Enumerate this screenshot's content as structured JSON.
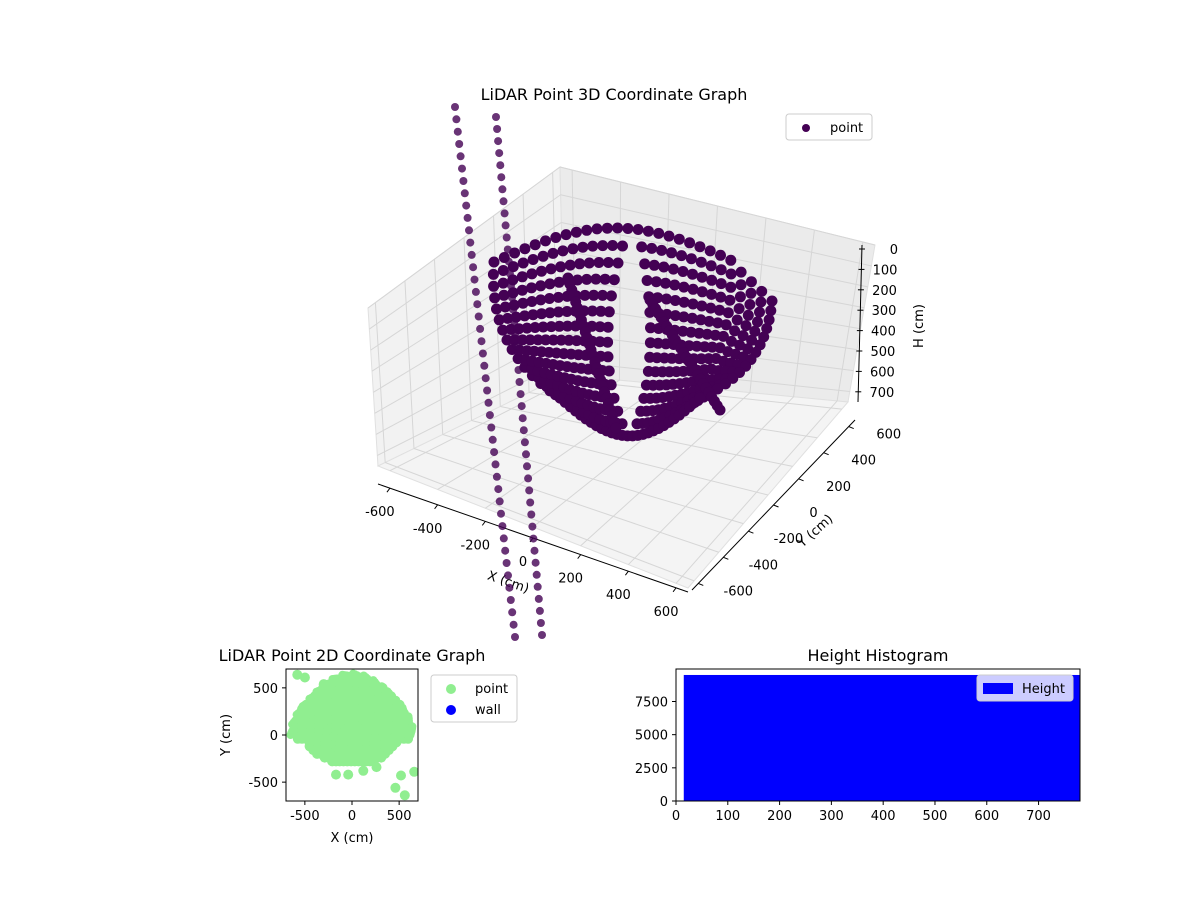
{
  "chart_data": [
    {
      "type": "scatter3d",
      "title": "LiDAR Point 3D Coordinate Graph",
      "xlabel": "X (cm)",
      "ylabel": "Y (cm)",
      "zlabel": "H (cm)",
      "xlim": [
        -650,
        650
      ],
      "ylim": [
        -650,
        650
      ],
      "zlim": [
        750,
        0
      ],
      "x_ticks": [
        "-600",
        "-400",
        "-200",
        "0",
        "200",
        "400",
        "600"
      ],
      "y_ticks": [
        "-600",
        "-400",
        "-200",
        "0",
        "200",
        "400",
        "600"
      ],
      "z_ticks": [
        "0",
        "100",
        "200",
        "300",
        "400",
        "500",
        "600",
        "700"
      ],
      "legend": [
        "point"
      ],
      "legend_position": "top-right",
      "point_color": "#440154",
      "shape": "hemispherical dome of point arcs, rim near H=50 cm, bottom near H=730 cm, plus two near-vertical point lines"
    },
    {
      "type": "scatter",
      "title": "LiDAR Point 2D Coordinate Graph",
      "xlabel": "X (cm)",
      "ylabel": "Y (cm)",
      "xlim": [
        -700,
        700
      ],
      "ylim": [
        -700,
        700
      ],
      "x_ticks": [
        "-500",
        "0",
        "500"
      ],
      "y_ticks": [
        "-500",
        "0",
        "500"
      ],
      "series": [
        {
          "name": "point",
          "color": "#90ee90"
        },
        {
          "name": "wall",
          "color": "#0000ff"
        }
      ],
      "legend_position": "outside right"
    },
    {
      "type": "bar",
      "title": "Height Histogram",
      "series_name": "Height",
      "color": "#0000ff",
      "bin_range": [
        15,
        780
      ],
      "count": 9500,
      "xlim": [
        0,
        780
      ],
      "ylim": [
        0,
        9950
      ],
      "x_ticks": [
        "0",
        "100",
        "200",
        "300",
        "400",
        "500",
        "600",
        "700"
      ],
      "y_ticks": [
        "0",
        "2500",
        "5000",
        "7500"
      ],
      "legend_position": "top-right"
    }
  ]
}
